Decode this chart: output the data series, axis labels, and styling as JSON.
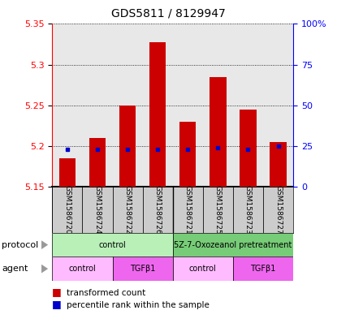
{
  "title": "GDS5811 / 8129947",
  "samples": [
    "GSM1586720",
    "GSM1586724",
    "GSM1586722",
    "GSM1586726",
    "GSM1586721",
    "GSM1586725",
    "GSM1586723",
    "GSM1586727"
  ],
  "bar_base": 5.15,
  "transformed_counts": [
    5.185,
    5.21,
    5.25,
    5.328,
    5.23,
    5.285,
    5.245,
    5.205
  ],
  "percentile_values": [
    5.196,
    5.196,
    5.196,
    5.196,
    5.196,
    5.198,
    5.196,
    5.2
  ],
  "ylim": [
    5.15,
    5.35
  ],
  "yticks_left": [
    5.15,
    5.2,
    5.25,
    5.3,
    5.35
  ],
  "yticks_right": [
    0,
    25,
    50,
    75,
    100
  ],
  "yticks_right_vals": [
    5.15,
    5.2,
    5.25,
    5.3,
    5.35
  ],
  "bar_color": "#cc0000",
  "percentile_color": "#0000cc",
  "protocol_groups": [
    {
      "label": "control",
      "start": 0,
      "end": 4,
      "color": "#b8f0b8"
    },
    {
      "label": "5Z-7-Oxozeanol pretreatment",
      "start": 4,
      "end": 8,
      "color": "#77cc77"
    }
  ],
  "agent_groups": [
    {
      "label": "control",
      "start": 0,
      "end": 2,
      "color": "#ffbbff"
    },
    {
      "label": "TGFβ1",
      "start": 2,
      "end": 4,
      "color": "#ee66ee"
    },
    {
      "label": "control",
      "start": 4,
      "end": 6,
      "color": "#ffbbff"
    },
    {
      "label": "TGFβ1",
      "start": 6,
      "end": 8,
      "color": "#ee66ee"
    }
  ],
  "bar_width": 0.55,
  "sample_area_bg": "#cccccc",
  "plot_bg": "#e8e8e8"
}
